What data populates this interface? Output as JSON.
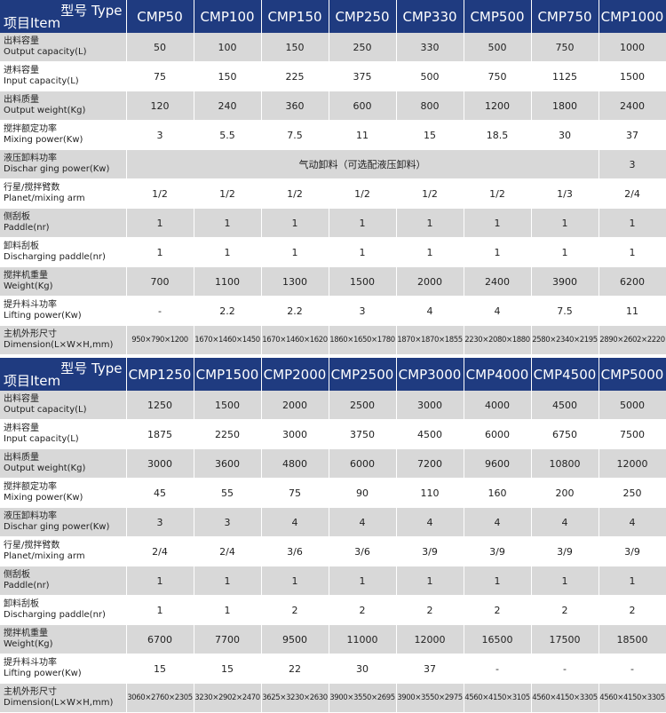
{
  "tables": [
    {
      "header": {
        "type_label": "型号 Type",
        "item_label": "项目Item",
        "models": [
          "CMP50",
          "CMP100",
          "CMP150",
          "CMP250",
          "CMP330",
          "CMP500",
          "CMP750",
          "CMP1000"
        ]
      },
      "rows": [
        {
          "label_cn": "出料容量",
          "label_en": "Output capacity(L)",
          "values": [
            "50",
            "100",
            "150",
            "250",
            "330",
            "500",
            "750",
            "1000"
          ]
        },
        {
          "label_cn": "进料容量",
          "label_en": "Input capacity(L)",
          "values": [
            "75",
            "150",
            "225",
            "375",
            "500",
            "750",
            "1125",
            "1500"
          ]
        },
        {
          "label_cn": "出料质量",
          "label_en": "Output weight(Kg)",
          "values": [
            "120",
            "240",
            "360",
            "600",
            "800",
            "1200",
            "1800",
            "2400"
          ]
        },
        {
          "label_cn": "搅拌额定功率",
          "label_en": "Mixing power(Kw)",
          "values": [
            "3",
            "5.5",
            "7.5",
            "11",
            "15",
            "18.5",
            "30",
            "37"
          ]
        },
        {
          "label_cn": "液压卸料功率",
          "label_en": "Dischar ging power(Kw)",
          "values": [
            "气动卸料（可选配液压卸料）",
            "3"
          ]
        },
        {
          "label_cn": "行星/搅拌臂数",
          "label_en": "Planet/mixing arm",
          "values": [
            "1/2",
            "1/2",
            "1/2",
            "1/2",
            "1/2",
            "1/2",
            "1/3",
            "2/4"
          ]
        },
        {
          "label_cn": "侧刮板",
          "label_en": "Paddle(nr)",
          "values": [
            "1",
            "1",
            "1",
            "1",
            "1",
            "1",
            "1",
            "1"
          ]
        },
        {
          "label_cn": "卸料刮板",
          "label_en": "Discharging paddle(nr)",
          "values": [
            "1",
            "1",
            "1",
            "1",
            "1",
            "1",
            "1",
            "1"
          ]
        },
        {
          "label_cn": "搅拌机重量",
          "label_en": "Weight(Kg)",
          "values": [
            "700",
            "1100",
            "1300",
            "1500",
            "2000",
            "2400",
            "3900",
            "6200"
          ]
        },
        {
          "label_cn": "提升料斗功率",
          "label_en": "Lifting power(Kw)",
          "values": [
            "-",
            "2.2",
            "2.2",
            "3",
            "4",
            "4",
            "7.5",
            "11"
          ]
        },
        {
          "label_cn": "主机外形尺寸",
          "label_en": "Dimension(L×W×H,mm)",
          "values": [
            "950×790×1200",
            "1670×1460×1450",
            "1670×1460×1620",
            "1860×1650×1780",
            "1870×1870×1855",
            "2230×2080×1880",
            "2580×2340×2195",
            "2890×2602×2220"
          ]
        }
      ]
    },
    {
      "header": {
        "type_label": "型号 Type",
        "item_label": "项目Item",
        "models": [
          "CMP1250",
          "CMP1500",
          "CMP2000",
          "CMP2500",
          "CMP3000",
          "CMP4000",
          "CMP4500",
          "CMP5000"
        ]
      },
      "rows": [
        {
          "label_cn": "出料容量",
          "label_en": "Output capacity(L)",
          "values": [
            "1250",
            "1500",
            "2000",
            "2500",
            "3000",
            "4000",
            "4500",
            "5000"
          ]
        },
        {
          "label_cn": "进料容量",
          "label_en": "Input capacity(L)",
          "values": [
            "1875",
            "2250",
            "3000",
            "3750",
            "4500",
            "6000",
            "6750",
            "7500"
          ]
        },
        {
          "label_cn": "出料质量",
          "label_en": "Output weight(Kg)",
          "values": [
            "3000",
            "3600",
            "4800",
            "6000",
            "7200",
            "9600",
            "10800",
            "12000"
          ]
        },
        {
          "label_cn": "搅拌额定功率",
          "label_en": "Mixing power(Kw)",
          "values": [
            "45",
            "55",
            "75",
            "90",
            "110",
            "160",
            "200",
            "250"
          ]
        },
        {
          "label_cn": "液压卸料功率",
          "label_en": "Dischar ging power(Kw)",
          "values": [
            "3",
            "3",
            "4",
            "4",
            "4",
            "4",
            "4",
            "4"
          ]
        },
        {
          "label_cn": "行星/搅拌臂数",
          "label_en": "Planet/mixing arm",
          "values": [
            "2/4",
            "2/4",
            "3/6",
            "3/6",
            "3/9",
            "3/9",
            "3/9",
            "3/9"
          ]
        },
        {
          "label_cn": "侧刮板",
          "label_en": "Paddle(nr)",
          "values": [
            "1",
            "1",
            "1",
            "1",
            "1",
            "1",
            "1",
            "1"
          ]
        },
        {
          "label_cn": "卸料刮板",
          "label_en": "Discharging paddle(nr)",
          "values": [
            "1",
            "1",
            "2",
            "2",
            "2",
            "2",
            "2",
            "2"
          ]
        },
        {
          "label_cn": "搅拌机重量",
          "label_en": "Weight(Kg)",
          "values": [
            "6700",
            "7700",
            "9500",
            "11000",
            "12000",
            "16500",
            "17500",
            "18500"
          ]
        },
        {
          "label_cn": "提升料斗功率",
          "label_en": "Lifting power(Kw)",
          "values": [
            "15",
            "15",
            "22",
            "30",
            "37",
            "-",
            "-",
            "-"
          ]
        },
        {
          "label_cn": "主机外形尺寸",
          "label_en": "Dimension(L×W×H,mm)",
          "values": [
            "3060×2760×2305",
            "3230×2902×2470",
            "3625×3230×2630",
            "3900×3550×2695",
            "3900×3550×2975",
            "4560×4150×3105",
            "4560×4150×3305",
            "4560×4150×3305"
          ]
        }
      ]
    }
  ]
}
